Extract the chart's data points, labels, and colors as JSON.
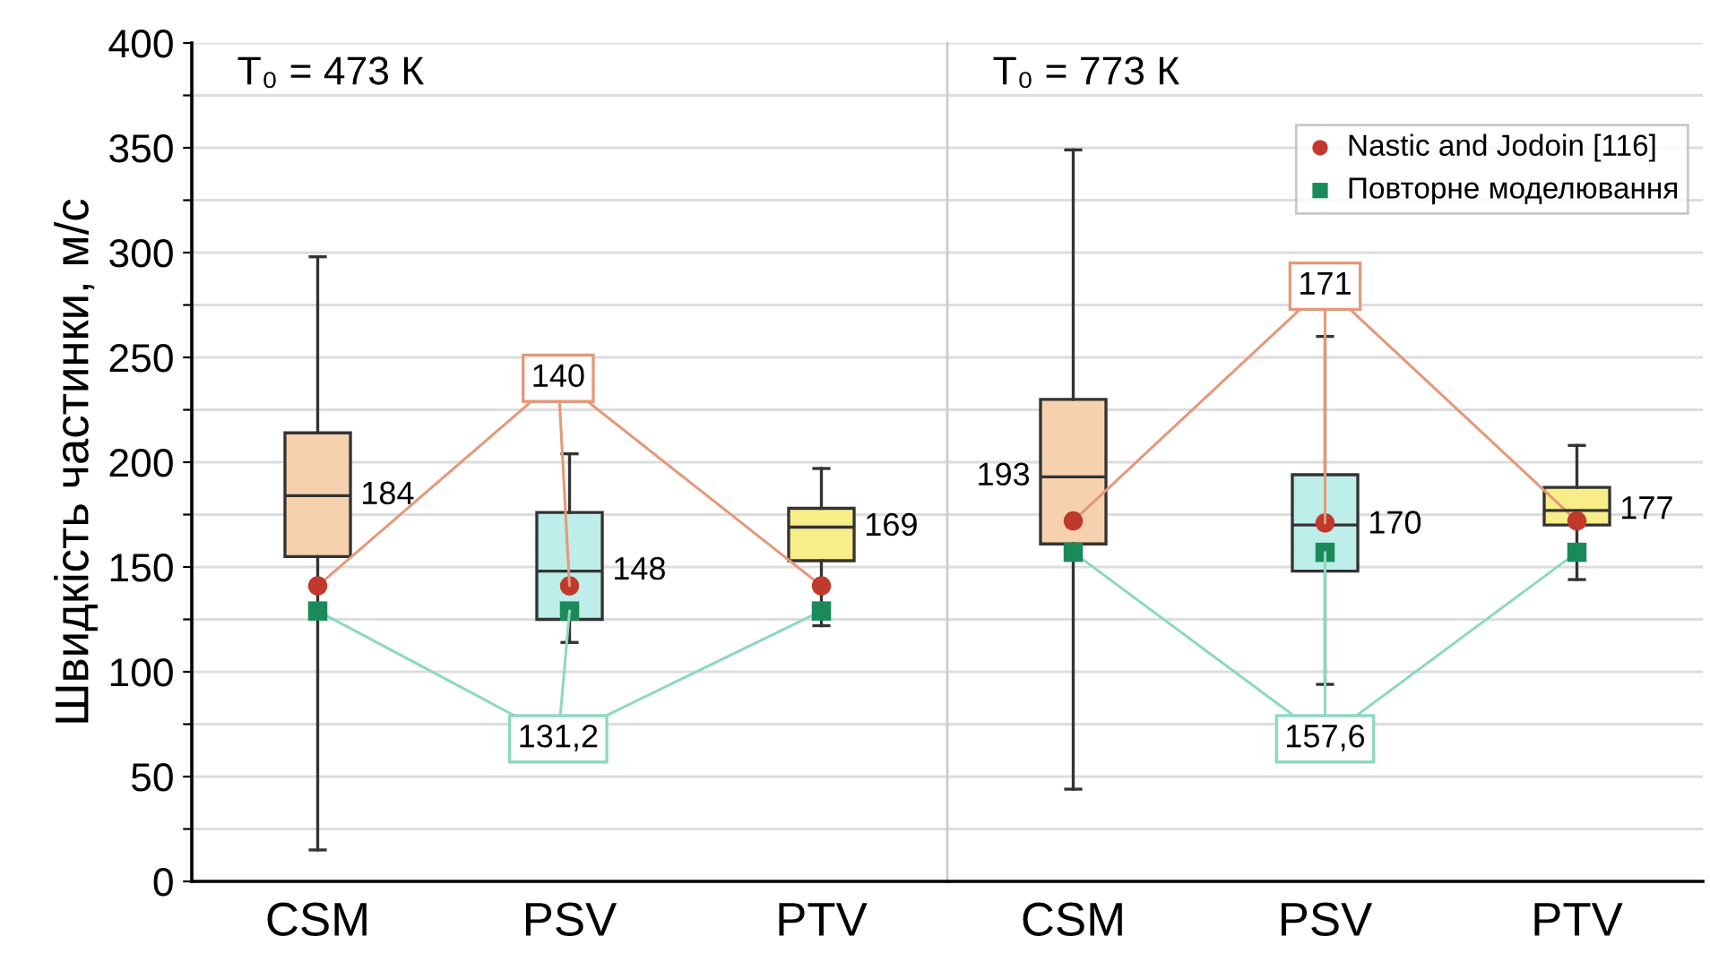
{
  "chart_data": [
    {
      "type": "box",
      "title": "T₀ = 473 К",
      "ylabel": "Швидкість частинки, м/с",
      "categories": [
        "CSM",
        "PSV",
        "PTV"
      ],
      "boxes": [
        {
          "low": 15,
          "q1": 155,
          "median": 184,
          "q3": 214,
          "high": 298
        },
        {
          "low": 114,
          "q1": 125,
          "median": 148,
          "q3": 176,
          "high": 204
        },
        {
          "low": 122,
          "q1": 153,
          "median": 169,
          "q3": 178,
          "high": 197
        }
      ],
      "colors": [
        "#f6d1ae",
        "#bdeeea",
        "#f7ee8a"
      ],
      "series": [
        {
          "type": "scatter",
          "color": "#c0392b",
          "marker": "circle",
          "values": [
            141,
            141,
            141
          ]
        },
        {
          "type": "scatter",
          "color": "#1a8a5a",
          "marker": "square",
          "values": [
            129,
            129,
            129
          ]
        }
      ],
      "annotations": [
        {
          "text": "140",
          "x": "PSV",
          "y": 141
        },
        {
          "text": "131,2",
          "x": "PSV",
          "y": 129
        },
        {
          "text": "184",
          "x": "CSM",
          "y": 184
        },
        {
          "text": "148",
          "x": "PSV",
          "y": 148
        },
        {
          "text": "169",
          "x": "PTV",
          "y": 169
        }
      ],
      "ylim": [
        0,
        400
      ],
      "yticks": [
        0,
        {
          "value": 25,
          "label": null
        },
        50,
        {
          "value": 75,
          "label": null
        },
        100,
        {
          "value": 125,
          "label": null
        },
        150,
        {
          "value": 175,
          "label": null
        },
        200,
        {
          "value": 225,
          "label": null
        },
        250,
        {
          "value": 275,
          "label": null
        },
        300,
        {
          "value": 325,
          "label": null
        },
        350,
        {
          "value": 375,
          "label": null
        },
        400
      ],
      "grid": "y",
      "legend": false
    },
    {
      "type": "box",
      "title": "T₀ = 773 К",
      "categories": [
        "CSM",
        "PSV",
        "PTV"
      ],
      "boxes": [
        {
          "low": 44,
          "q1": 161,
          "median": 193,
          "q3": 230,
          "high": 349
        },
        {
          "low": 94,
          "q1": 148,
          "median": 170,
          "q3": 194,
          "high": 260
        },
        {
          "low": 144,
          "q1": 170,
          "median": 177,
          "q3": 188,
          "high": 208
        }
      ],
      "colors": [
        "#f6d1ae",
        "#bdeeea",
        "#f7ee8a"
      ],
      "series": [
        {
          "type": "scatter",
          "name": "Nastic and Jodoin [116]",
          "color": "#c0392b",
          "marker": "circle",
          "values": [
            172,
            171,
            172
          ]
        },
        {
          "type": "scatter",
          "name": "Повторне моделювання",
          "color": "#1a8a5a",
          "marker": "square",
          "values": [
            157,
            157,
            157
          ]
        }
      ],
      "annotations": [
        {
          "text": "171",
          "x": "PSV",
          "y": 171
        },
        {
          "text": "157,6",
          "x": "PSV",
          "y": 157
        },
        {
          "text": "193",
          "x": "CSM",
          "y": 193
        },
        {
          "text": "170",
          "x": "PSV",
          "y": 170
        },
        {
          "text": "177",
          "x": "PTV",
          "y": 177
        }
      ],
      "ylim": [
        0,
        400
      ],
      "yticks": [
        0,
        {
          "value": 25,
          "label": null
        },
        50,
        {
          "value": 75,
          "label": null
        },
        100,
        {
          "value": 125,
          "label": null
        },
        150,
        {
          "value": 175,
          "label": null
        },
        200,
        {
          "value": 225,
          "label": null
        },
        250,
        {
          "value": 275,
          "label": null
        },
        300,
        {
          "value": 325,
          "label": null
        },
        350,
        {
          "value": 375,
          "label": null
        },
        400
      ],
      "tick_labels": "x",
      "grid": "y",
      "legend": "top right"
    }
  ]
}
